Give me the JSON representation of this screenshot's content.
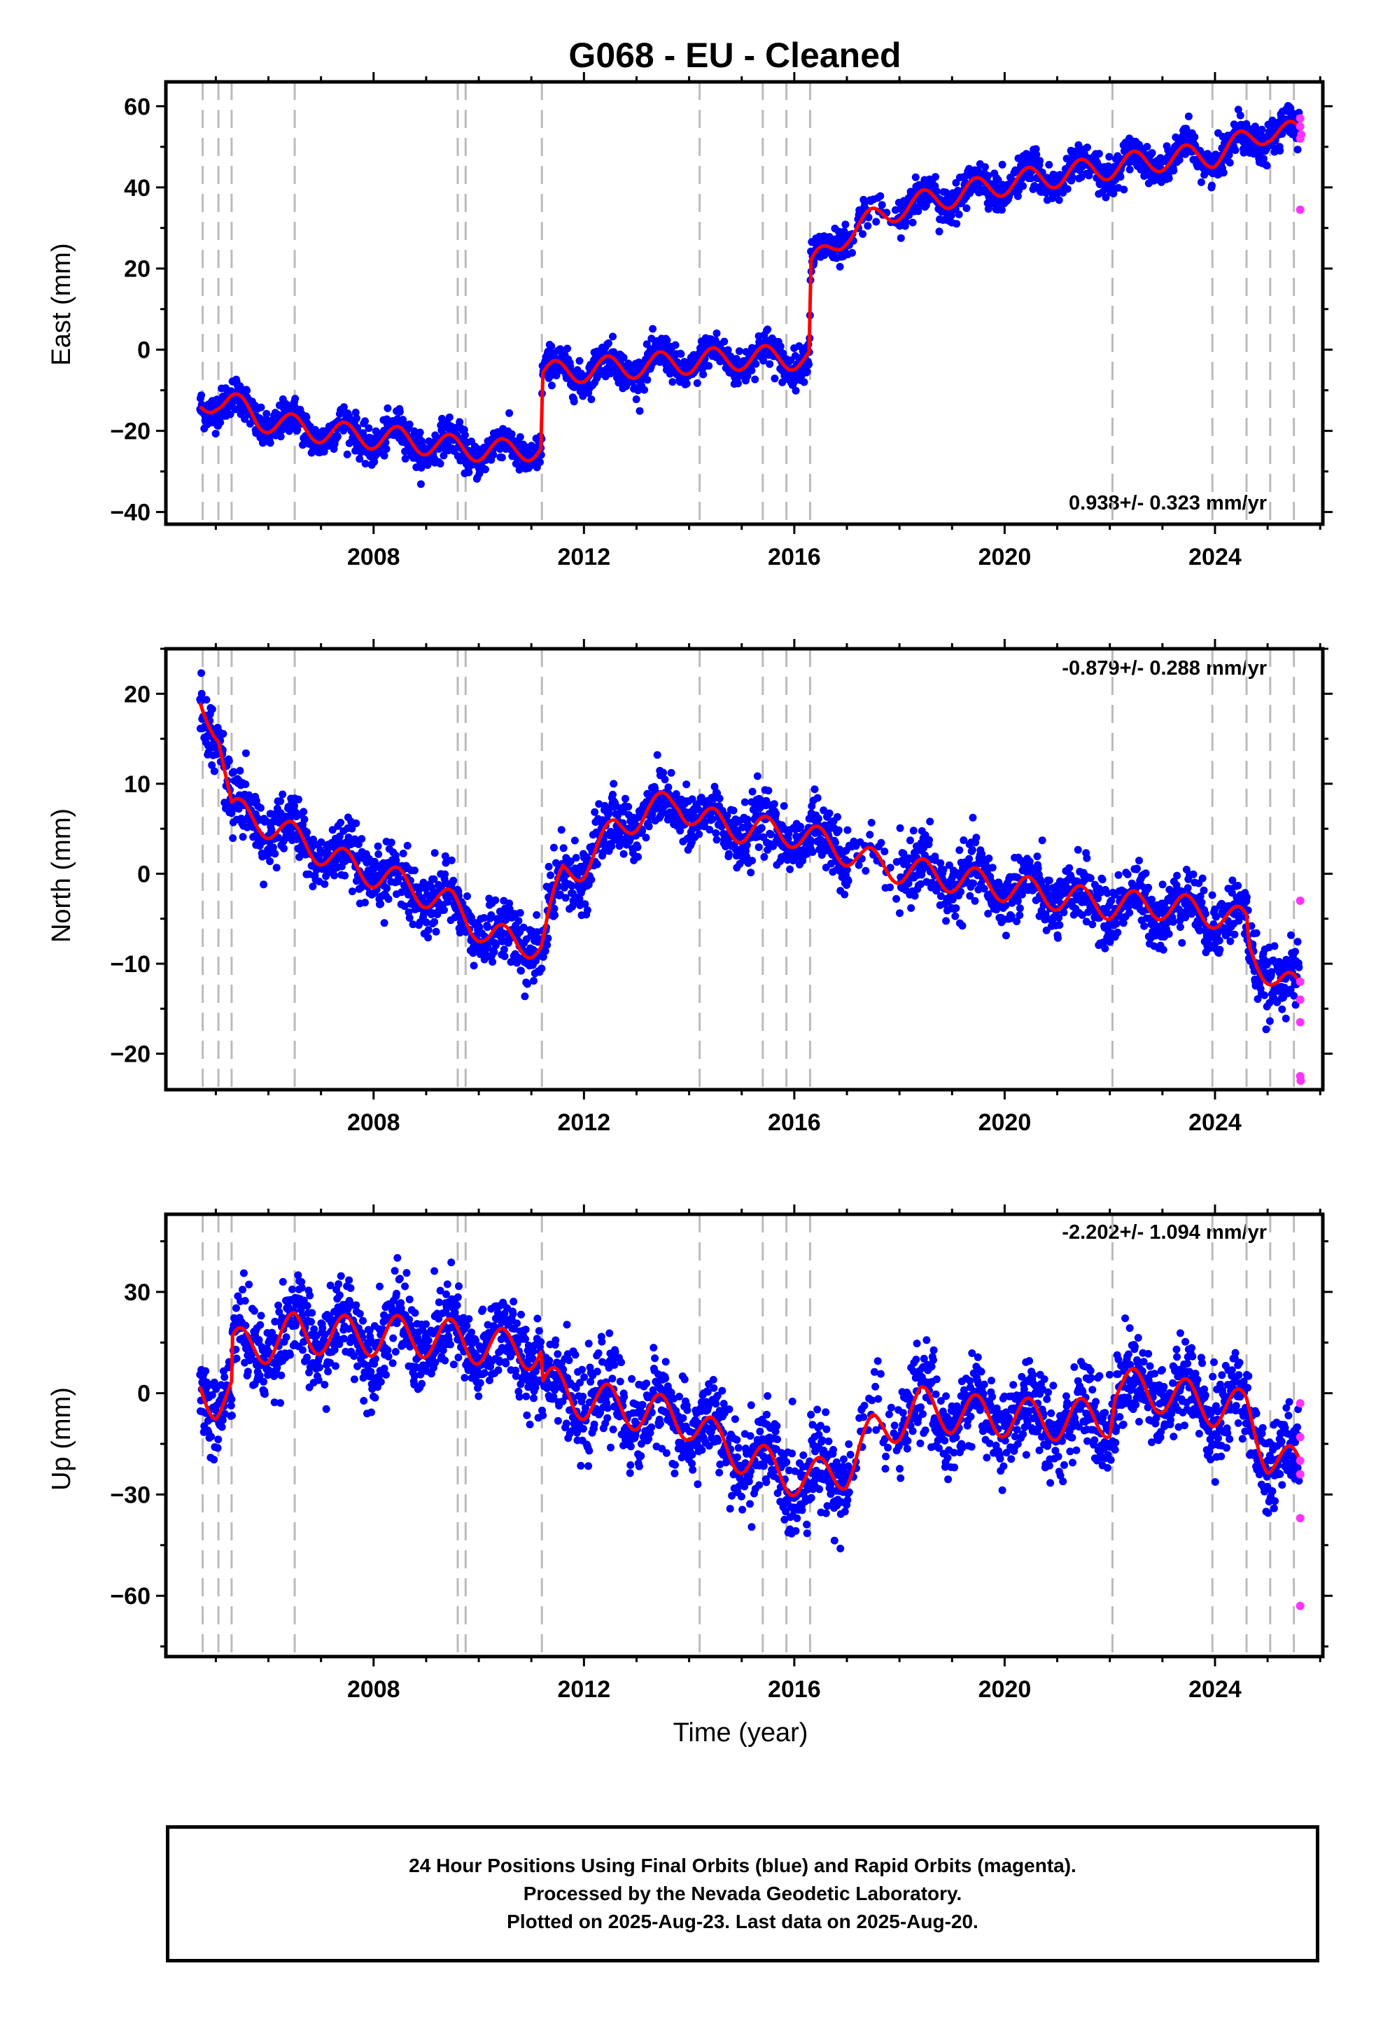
{
  "title": "G068  - EU - Cleaned",
  "caption": {
    "line1": "24 Hour Positions Using Final Orbits (blue) and Rapid Orbits (magenta).",
    "line2": "Processed by the Nevada Geodetic Laboratory.",
    "line3": "Plotted on 2025-Aug-23. Last data on 2025-Aug-20."
  },
  "colors": {
    "final_orbits": "#0000ff",
    "rapid_orbits": "#ff33ff",
    "model": "#ff0000",
    "event_lines": "#bbbbbb"
  },
  "chart_data": [
    {
      "type": "scatter",
      "component": "east",
      "ylabel": "East (mm)",
      "xlabel": "",
      "rate_text": "0.938+/- 0.323 mm/yr",
      "rate_position": "bottom-right",
      "xlim": [
        2004.05,
        2026.05
      ],
      "ylim": [
        -43,
        66
      ],
      "x_ticks": [
        2008,
        2012,
        2016,
        2020,
        2024
      ],
      "y_ticks": [
        -40,
        -20,
        0,
        20,
        40,
        60
      ],
      "event_lines": [
        2004.75,
        2005.05,
        2005.3,
        2006.5,
        2009.6,
        2009.75,
        2011.2,
        2014.2,
        2015.4,
        2015.85,
        2016.3,
        2022.05,
        2023.95,
        2024.6,
        2025.05,
        2025.5
      ],
      "offsets": [
        {
          "x": 2011.2,
          "dy": 17
        },
        {
          "x": 2016.3,
          "dy": 22
        }
      ],
      "model_points": [
        [
          2004.7,
          -14
        ],
        [
          2005.0,
          -12
        ],
        [
          2005.3,
          -13
        ],
        [
          2005.8,
          -17
        ],
        [
          2006.5,
          -19
        ],
        [
          2007.5,
          -21
        ],
        [
          2008.5,
          -22
        ],
        [
          2009.5,
          -24
        ],
        [
          2010.5,
          -25
        ],
        [
          2011.19,
          -24
        ],
        [
          2011.21,
          -6
        ],
        [
          2012.0,
          -5
        ],
        [
          2013.0,
          -4
        ],
        [
          2014.0,
          -3
        ],
        [
          2015.0,
          -2
        ],
        [
          2016.29,
          -2
        ],
        [
          2016.31,
          20
        ],
        [
          2017.0,
          29
        ],
        [
          2018.0,
          35
        ],
        [
          2019.0,
          38
        ],
        [
          2020.0,
          41
        ],
        [
          2021.0,
          43
        ],
        [
          2022.0,
          45
        ],
        [
          2023.0,
          47
        ],
        [
          2024.0,
          48
        ],
        [
          2025.0,
          54
        ],
        [
          2025.6,
          53
        ]
      ],
      "seasonal_amplitude": 3,
      "noise_sd": 2.2,
      "rapid_points": [
        [
          2025.62,
          34.5
        ],
        [
          2025.62,
          52
        ],
        [
          2025.62,
          55
        ],
        [
          2025.62,
          57
        ],
        [
          2025.64,
          53
        ]
      ]
    },
    {
      "type": "scatter",
      "component": "north",
      "ylabel": "North (mm)",
      "xlabel": "",
      "rate_text": "-0.879+/- 0.288 mm/yr",
      "rate_position": "top-right",
      "xlim": [
        2004.05,
        2026.05
      ],
      "ylim": [
        -24,
        25
      ],
      "x_ticks": [
        2008,
        2012,
        2016,
        2020,
        2024
      ],
      "y_ticks": [
        -20,
        -10,
        0,
        10,
        20
      ],
      "event_lines": [
        2004.75,
        2005.05,
        2005.3,
        2006.5,
        2009.6,
        2009.75,
        2011.2,
        2014.2,
        2015.4,
        2015.85,
        2016.3,
        2022.05,
        2023.95,
        2024.6,
        2025.05,
        2025.5
      ],
      "offsets": [],
      "model_points": [
        [
          2004.7,
          19
        ],
        [
          2004.9,
          17.5
        ],
        [
          2005.05,
          16
        ],
        [
          2005.3,
          7
        ],
        [
          2005.8,
          6
        ],
        [
          2006.5,
          4
        ],
        [
          2007.5,
          1
        ],
        [
          2008.5,
          -1
        ],
        [
          2009.5,
          -3.5
        ],
        [
          2010.2,
          -7
        ],
        [
          2011.19,
          -8
        ],
        [
          2011.6,
          0
        ],
        [
          2012.0,
          1
        ],
        [
          2012.6,
          5
        ],
        [
          2013.2,
          7
        ],
        [
          2013.8,
          8
        ],
        [
          2014.2,
          6
        ],
        [
          2015.0,
          5
        ],
        [
          2016.0,
          4.5
        ],
        [
          2016.8,
          3
        ],
        [
          2017.3,
          1.5
        ],
        [
          2018.0,
          0.5
        ],
        [
          2019.0,
          -0.5
        ],
        [
          2020.0,
          -1.5
        ],
        [
          2021.0,
          -2.5
        ],
        [
          2022.0,
          -3.5
        ],
        [
          2023.0,
          -3.5
        ],
        [
          2024.0,
          -4.5
        ],
        [
          2024.6,
          -5.5
        ],
        [
          2024.65,
          -8.5
        ],
        [
          2025.2,
          -12
        ],
        [
          2025.6,
          -13
        ]
      ],
      "seasonal_amplitude": 1.6,
      "noise_sd": 1.7,
      "rapid_points": [
        [
          2025.62,
          -3
        ],
        [
          2025.62,
          -12
        ],
        [
          2025.62,
          -14
        ],
        [
          2025.62,
          -16.5
        ],
        [
          2025.62,
          -22.5
        ],
        [
          2025.63,
          -23
        ]
      ]
    },
    {
      "type": "scatter",
      "component": "up",
      "ylabel": "Up (mm)",
      "xlabel": "Time (year)",
      "rate_text": "-2.202+/- 1.094 mm/yr",
      "rate_position": "top-right",
      "xlim": [
        2004.05,
        2026.05
      ],
      "ylim": [
        -78,
        53
      ],
      "x_ticks": [
        2008,
        2012,
        2016,
        2020,
        2024
      ],
      "y_ticks": [
        -60,
        -30,
        0,
        30
      ],
      "event_lines": [
        2004.75,
        2005.05,
        2005.3,
        2006.5,
        2009.6,
        2009.75,
        2011.2,
        2014.2,
        2015.4,
        2015.85,
        2016.3,
        2022.05,
        2023.95,
        2024.6,
        2025.05,
        2025.5
      ],
      "offsets": [],
      "model_points": [
        [
          2004.7,
          2
        ],
        [
          2005.0,
          -2
        ],
        [
          2005.3,
          0
        ],
        [
          2005.32,
          13
        ],
        [
          2006.0,
          15
        ],
        [
          2006.5,
          18
        ],
        [
          2007.5,
          17
        ],
        [
          2008.5,
          17
        ],
        [
          2009.5,
          16
        ],
        [
          2010.5,
          13
        ],
        [
          2011.19,
          13
        ],
        [
          2011.21,
          3
        ],
        [
          2012.0,
          -2
        ],
        [
          2013.0,
          -5
        ],
        [
          2014.0,
          -8
        ],
        [
          2014.5,
          -14
        ],
        [
          2015.5,
          -22
        ],
        [
          2016.3,
          -26
        ],
        [
          2017.0,
          -22
        ],
        [
          2017.5,
          -12
        ],
        [
          2018.0,
          -8
        ],
        [
          2018.4,
          -4
        ],
        [
          2019.0,
          -6
        ],
        [
          2020.0,
          -7
        ],
        [
          2021.0,
          -8
        ],
        [
          2022.0,
          -7
        ],
        [
          2022.1,
          2
        ],
        [
          2023.0,
          0
        ],
        [
          2024.0,
          -4
        ],
        [
          2024.6,
          -5
        ],
        [
          2025.0,
          -18
        ],
        [
          2025.6,
          -23
        ]
      ],
      "seasonal_amplitude": 6,
      "noise_sd": 6.5,
      "rapid_points": [
        [
          2025.62,
          -3
        ],
        [
          2025.62,
          -13
        ],
        [
          2025.62,
          -20
        ],
        [
          2025.62,
          -24
        ],
        [
          2025.62,
          -37
        ],
        [
          2025.62,
          -63
        ]
      ]
    }
  ]
}
